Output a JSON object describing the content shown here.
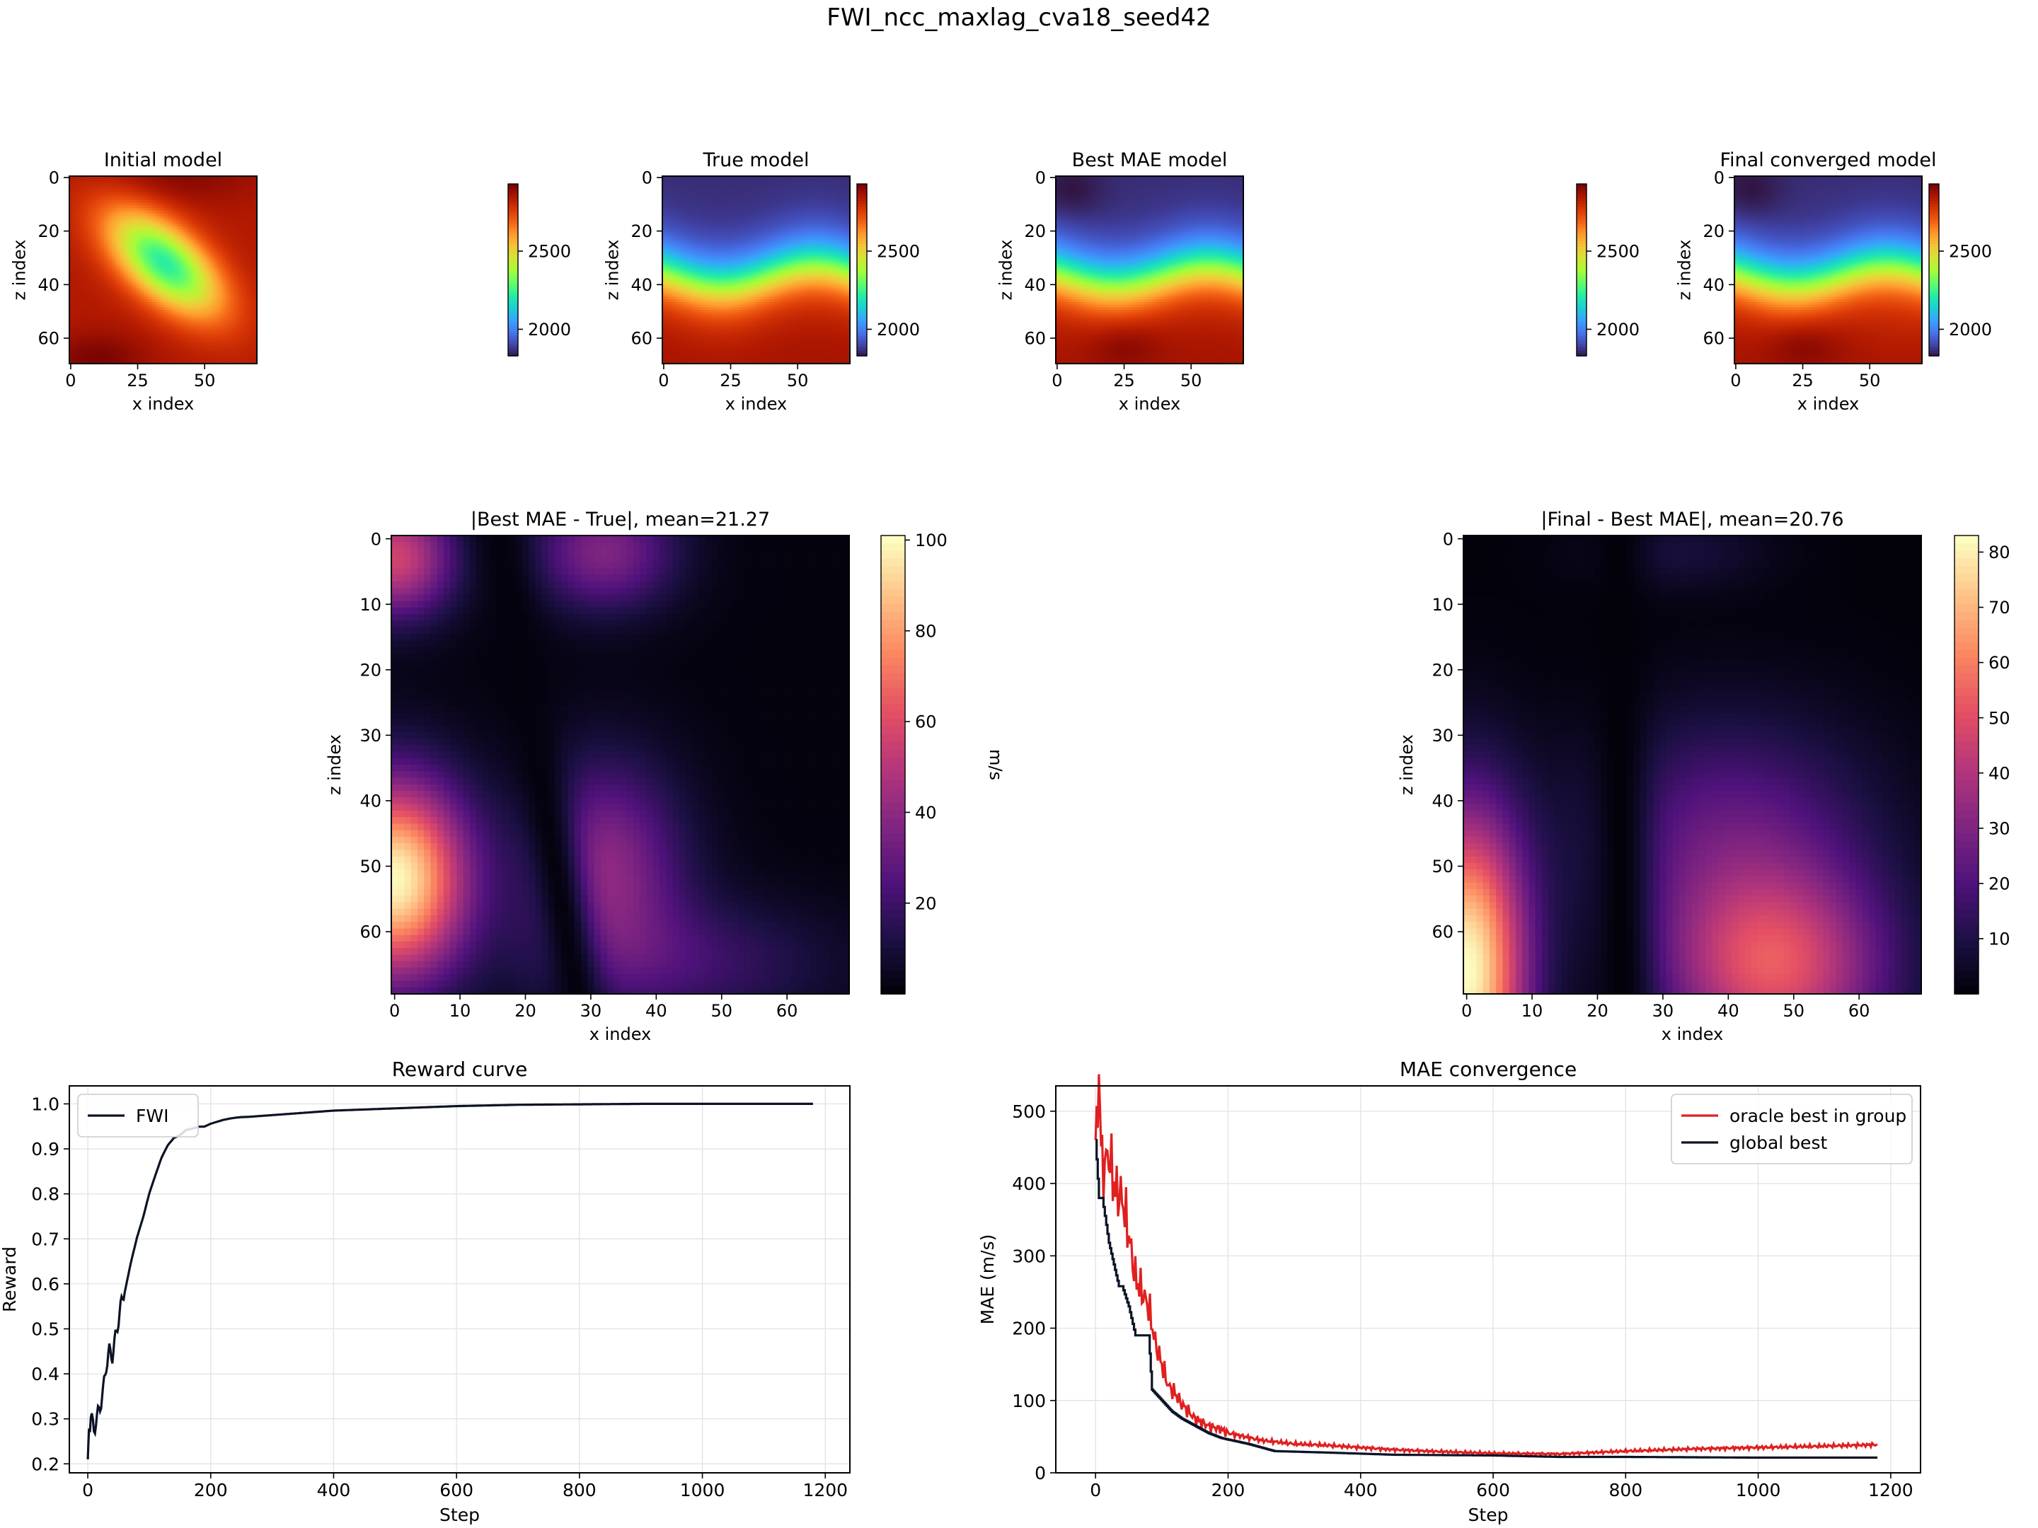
{
  "figure": {
    "title": "FWI_ncc_maxlag_cva18_seed42"
  },
  "colors": {
    "turbo_palette": [
      "#30123b",
      "#4145ab",
      "#4675ed",
      "#39a2fc",
      "#1bcfd4",
      "#24eca6",
      "#61fc6c",
      "#a4fc3b",
      "#d1e834",
      "#f3c63a",
      "#fe9b2d",
      "#f36315",
      "#d93806",
      "#b11901",
      "#7a0403"
    ],
    "magma_palette": [
      "#000004",
      "#1c1044",
      "#4f127b",
      "#812581",
      "#b5367a",
      "#e55064",
      "#fb8761",
      "#fec287",
      "#fcfdbf"
    ],
    "line_dark": "#0d1326",
    "line_red": "#e02020",
    "grid": "#e4e4e4"
  },
  "chart_data": [
    {
      "id": "initial",
      "type": "heatmap",
      "title": "Initial model",
      "xlabel": "x index",
      "ylabel": "z index",
      "xticks": [
        0,
        25,
        50
      ],
      "yticks": [
        0,
        20,
        40,
        60
      ],
      "extent": [
        70,
        70
      ],
      "colormap": "turbo",
      "clim": [
        1830,
        2930
      ],
      "colorbar_ticks": [
        2000,
        2500
      ],
      "description_field": {
        "background": 2850,
        "blob_center": [
          35,
          32
        ],
        "blob_value": 2300
      }
    },
    {
      "id": "true",
      "type": "heatmap",
      "title": "True model",
      "xlabel": "x index",
      "ylabel": "z index",
      "xticks": [
        0,
        25,
        50
      ],
      "yticks": [
        0,
        20,
        40,
        60
      ],
      "extent": [
        70,
        70
      ],
      "colormap": "turbo",
      "clim": [
        1830,
        2930
      ],
      "colorbar_ticks": [
        2000,
        2500
      ]
    },
    {
      "id": "best",
      "type": "heatmap",
      "title": "Best MAE model",
      "xlabel": "x index",
      "ylabel": "z index",
      "xticks": [
        0,
        25,
        50
      ],
      "yticks": [
        0,
        20,
        40,
        60
      ],
      "extent": [
        70,
        70
      ],
      "colormap": "turbo",
      "clim": [
        1830,
        2930
      ],
      "colorbar_ticks": [
        2000,
        2500
      ]
    },
    {
      "id": "final",
      "type": "heatmap",
      "title": "Final converged model",
      "xlabel": "x index",
      "ylabel": "z index",
      "xticks": [
        0,
        25,
        50
      ],
      "yticks": [
        0,
        20,
        40,
        60
      ],
      "extent": [
        70,
        70
      ],
      "colormap": "turbo",
      "clim": [
        1830,
        2930
      ],
      "colorbar_ticks": [
        2000,
        2500
      ]
    },
    {
      "id": "diff1",
      "type": "heatmap",
      "title": "|Best MAE - True|, mean=21.27",
      "xlabel": "x index",
      "ylabel": "z index",
      "xticks": [
        0,
        10,
        20,
        30,
        40,
        50,
        60
      ],
      "yticks": [
        0,
        10,
        20,
        30,
        40,
        50,
        60
      ],
      "extent": [
        70,
        70
      ],
      "colormap": "magma",
      "clim": [
        0,
        101
      ],
      "colorbar_ticks": [
        20,
        40,
        60,
        80,
        100
      ],
      "colorbar_label": "m/s"
    },
    {
      "id": "diff2",
      "type": "heatmap",
      "title": "|Final - Best MAE|, mean=20.76",
      "xlabel": "x index",
      "ylabel": "z index",
      "xticks": [
        0,
        10,
        20,
        30,
        40,
        50,
        60
      ],
      "yticks": [
        0,
        10,
        20,
        30,
        40,
        50,
        60
      ],
      "extent": [
        70,
        70
      ],
      "colormap": "magma",
      "clim": [
        0,
        83
      ],
      "colorbar_ticks": [
        10,
        20,
        30,
        40,
        50,
        60,
        70,
        80
      ],
      "colorbar_label": "m/s"
    },
    {
      "id": "reward",
      "type": "line",
      "title": "Reward curve",
      "xlabel": "Step",
      "ylabel": "Reward",
      "xlim": [
        -30,
        1240
      ],
      "ylim": [
        0.18,
        1.04
      ],
      "xticks": [
        0,
        200,
        400,
        600,
        800,
        1000,
        1200
      ],
      "yticks": [
        0.2,
        0.3,
        0.4,
        0.5,
        0.6,
        0.7,
        0.8,
        0.9,
        1.0
      ],
      "grid": true,
      "legend": "upper-left",
      "series": [
        {
          "name": "FWI",
          "color": "#0d1326",
          "x": [
            0,
            2,
            5,
            10,
            15,
            20,
            25,
            30,
            35,
            40,
            45,
            50,
            55,
            60,
            70,
            80,
            90,
            100,
            110,
            120,
            130,
            140,
            150,
            160,
            170,
            180,
            190,
            200,
            220,
            250,
            300,
            350,
            400,
            500,
            600,
            700,
            800,
            900,
            1000,
            1100,
            1180
          ],
          "y": [
            0.21,
            0.28,
            0.3,
            0.28,
            0.3,
            0.33,
            0.36,
            0.42,
            0.45,
            0.44,
            0.48,
            0.52,
            0.56,
            0.59,
            0.65,
            0.7,
            0.74,
            0.79,
            0.83,
            0.87,
            0.9,
            0.92,
            0.93,
            0.945,
            0.95,
            0.955,
            0.955,
            0.96,
            0.965,
            0.97,
            0.975,
            0.98,
            0.985,
            0.99,
            0.995,
            0.998,
            0.999,
            1.0,
            1.0,
            1.0,
            1.0
          ]
        }
      ]
    },
    {
      "id": "mae",
      "type": "line",
      "title": "MAE convergence",
      "xlabel": "Step",
      "ylabel": "MAE (m/s)",
      "xlim": [
        -60,
        1245
      ],
      "ylim": [
        0,
        535
      ],
      "xticks": [
        0,
        200,
        400,
        600,
        800,
        1000,
        1200
      ],
      "yticks": [
        0,
        100,
        200,
        300,
        400,
        500
      ],
      "grid": true,
      "legend": "upper-right",
      "series": [
        {
          "name": "oracle best in group",
          "color": "#e02020",
          "x": [
            0,
            5,
            10,
            20,
            30,
            40,
            50,
            60,
            70,
            80,
            90,
            100,
            110,
            120,
            130,
            140,
            150,
            170,
            190,
            200,
            250,
            300,
            350,
            400,
            450,
            500,
            600,
            700,
            800,
            900,
            1000,
            1100,
            1180
          ],
          "y": [
            460,
            500,
            420,
            440,
            390,
            380,
            330,
            270,
            250,
            230,
            180,
            150,
            120,
            110,
            95,
            85,
            75,
            65,
            60,
            55,
            45,
            40,
            38,
            35,
            32,
            30,
            27,
            26,
            30,
            33,
            35,
            37,
            39
          ]
        },
        {
          "name": "global best",
          "color": "#0d1326",
          "x": [
            0,
            5,
            10,
            20,
            35,
            40,
            50,
            60,
            80,
            85,
            100,
            115,
            130,
            150,
            170,
            190,
            230,
            270,
            350,
            450,
            600,
            700,
            800,
            1000,
            1180
          ],
          "y": [
            460,
            380,
            380,
            318,
            258,
            258,
            230,
            190,
            190,
            115,
            100,
            85,
            75,
            65,
            55,
            48,
            40,
            30,
            28,
            25,
            24,
            22,
            22,
            21,
            21
          ]
        }
      ]
    }
  ]
}
